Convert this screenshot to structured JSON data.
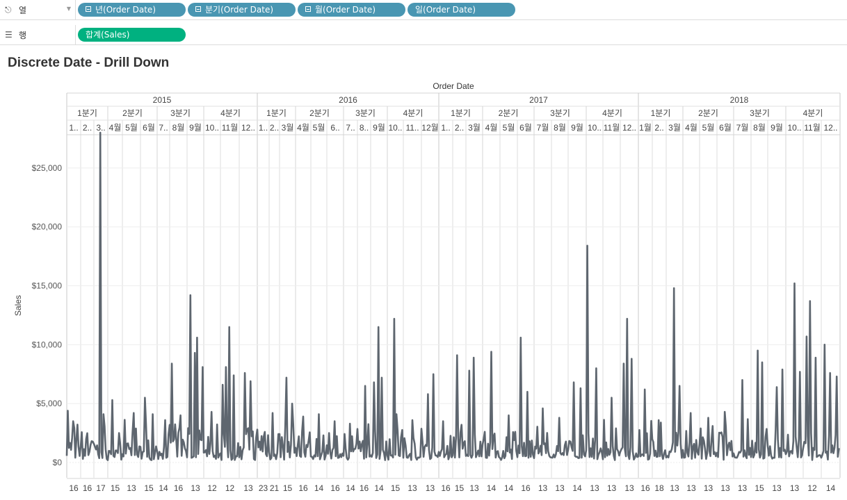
{
  "columns_shelf": {
    "label": "열",
    "icon": "columns-icon",
    "pills": [
      "년(Order Date)",
      "분기(Order Date)",
      "월(Order Date)",
      "일(Order Date)"
    ]
  },
  "rows_shelf": {
    "label": "행",
    "icon": "rows-icon",
    "pills": [
      "합계(Sales)"
    ]
  },
  "colors": {
    "dimension_pill": "#4996b2",
    "measure_pill": "#00b180",
    "line": "#5e666f"
  },
  "chart_data": {
    "type": "line",
    "title": "Discrete Date - Drill Down",
    "header_title": "Order Date",
    "ylabel": "Sales",
    "ylim": [
      0,
      29000
    ],
    "y_ticks": [
      {
        "value": 0,
        "label": "$0"
      },
      {
        "value": 5000,
        "label": "$5,000"
      },
      {
        "value": 10000,
        "label": "$10,000"
      },
      {
        "value": 15000,
        "label": "$15,000"
      },
      {
        "value": 20000,
        "label": "$20,000"
      },
      {
        "value": 25000,
        "label": "$25,000"
      }
    ],
    "years": [
      "2015",
      "2016",
      "2017",
      "2018"
    ],
    "quarter_labels": [
      "1분기",
      "2분기",
      "3분기",
      "4분기",
      "1분기",
      "2분기",
      "3분기",
      "4분기",
      "1분기",
      "2분기",
      "3분기",
      "4분기",
      "1분기",
      "2분기",
      "3분기",
      "4분기"
    ],
    "month_labels": [
      "1..",
      "2..",
      "3..",
      "4월",
      "5월",
      "6월",
      "7..",
      "8월",
      "9월",
      "10..",
      "11월",
      "12..",
      "1..",
      "2..",
      "3월",
      "4월",
      "5월",
      "6..",
      "7..",
      "8..",
      "9월",
      "10..",
      "11..",
      "12월",
      "1..",
      "2..",
      "3월",
      "4월",
      "5월",
      "6월",
      "7월",
      "8월",
      "9월",
      "10..",
      "11월",
      "12..",
      "1월",
      "2..",
      "3월",
      "4월",
      "5월",
      "6월",
      "7월",
      "8월",
      "9월",
      "10..",
      "11월",
      "12.."
    ],
    "month_bottom_labels": [
      "16",
      "16",
      "17",
      "15",
      "13",
      "15",
      "14",
      "16",
      "13",
      "12",
      "12",
      "13",
      "23",
      "21",
      "15",
      "16",
      "14",
      "16",
      "14",
      "16",
      "14",
      "15",
      "13",
      "13",
      "16",
      "15",
      "13",
      "14",
      "14",
      "16",
      "13",
      "13",
      "14",
      "13",
      "13",
      "13",
      "16",
      "18",
      "13",
      "13",
      "13",
      "13",
      "13",
      "15",
      "13",
      "13",
      "12",
      "14"
    ],
    "peaks": [
      {
        "month": 0,
        "pos": 0.1,
        "value": 4400
      },
      {
        "month": 0,
        "pos": 0.5,
        "value": 3500
      },
      {
        "month": 1,
        "pos": 0.4,
        "value": 2000
      },
      {
        "month": 2,
        "pos": 0.45,
        "value": 28000
      },
      {
        "month": 2,
        "pos": 0.7,
        "value": 4100
      },
      {
        "month": 3,
        "pos": 0.3,
        "value": 5300
      },
      {
        "month": 3,
        "pos": 0.8,
        "value": 2500
      },
      {
        "month": 4,
        "pos": 0.6,
        "value": 4200
      },
      {
        "month": 5,
        "pos": 0.3,
        "value": 5500
      },
      {
        "month": 5,
        "pos": 0.7,
        "value": 4100
      },
      {
        "month": 6,
        "pos": 0.6,
        "value": 3600
      },
      {
        "month": 7,
        "pos": 0.1,
        "value": 8400
      },
      {
        "month": 7,
        "pos": 0.6,
        "value": 4000
      },
      {
        "month": 8,
        "pos": 0.2,
        "value": 14200
      },
      {
        "month": 8,
        "pos": 0.6,
        "value": 10600
      },
      {
        "month": 8,
        "pos": 0.5,
        "value": 9300
      },
      {
        "month": 8,
        "pos": 0.9,
        "value": 8100
      },
      {
        "month": 9,
        "pos": 0.5,
        "value": 4300
      },
      {
        "month": 10,
        "pos": 0.1,
        "value": 6600
      },
      {
        "month": 10,
        "pos": 0.45,
        "value": 11500
      },
      {
        "month": 10,
        "pos": 0.3,
        "value": 8100
      },
      {
        "month": 10,
        "pos": 0.7,
        "value": 7400
      },
      {
        "month": 11,
        "pos": 0.3,
        "value": 7600
      },
      {
        "month": 11,
        "pos": 0.6,
        "value": 6900
      },
      {
        "month": 12,
        "pos": 0.6,
        "value": 2600
      },
      {
        "month": 13,
        "pos": 0.3,
        "value": 4200
      },
      {
        "month": 14,
        "pos": 0.4,
        "value": 7200
      },
      {
        "month": 14,
        "pos": 0.8,
        "value": 5000
      },
      {
        "month": 15,
        "pos": 0.5,
        "value": 3900
      },
      {
        "month": 16,
        "pos": 0.5,
        "value": 4100
      },
      {
        "month": 17,
        "pos": 0.5,
        "value": 3500
      },
      {
        "month": 18,
        "pos": 0.5,
        "value": 3300
      },
      {
        "month": 19,
        "pos": 0.6,
        "value": 6500
      },
      {
        "month": 20,
        "pos": 0.2,
        "value": 6800
      },
      {
        "month": 20,
        "pos": 0.5,
        "value": 11500
      },
      {
        "month": 20,
        "pos": 0.7,
        "value": 7200
      },
      {
        "month": 21,
        "pos": 0.4,
        "value": 12200
      },
      {
        "month": 21,
        "pos": 0.6,
        "value": 4100
      },
      {
        "month": 22,
        "pos": 0.5,
        "value": 3600
      },
      {
        "month": 23,
        "pos": 0.4,
        "value": 5800
      },
      {
        "month": 23,
        "pos": 0.7,
        "value": 7500
      },
      {
        "month": 24,
        "pos": 0.3,
        "value": 3500
      },
      {
        "month": 25,
        "pos": 0.3,
        "value": 9100
      },
      {
        "month": 25,
        "pos": 0.7,
        "value": 3200
      },
      {
        "month": 26,
        "pos": 0.2,
        "value": 7800
      },
      {
        "month": 26,
        "pos": 0.5,
        "value": 8900
      },
      {
        "month": 27,
        "pos": 0.5,
        "value": 9400
      },
      {
        "month": 28,
        "pos": 0.5,
        "value": 4000
      },
      {
        "month": 29,
        "pos": 0.2,
        "value": 10600
      },
      {
        "month": 29,
        "pos": 0.6,
        "value": 6000
      },
      {
        "month": 30,
        "pos": 0.5,
        "value": 4600
      },
      {
        "month": 31,
        "pos": 0.5,
        "value": 3800
      },
      {
        "month": 32,
        "pos": 0.3,
        "value": 6800
      },
      {
        "month": 32,
        "pos": 0.7,
        "value": 6300
      },
      {
        "month": 33,
        "pos": 0.1,
        "value": 18400
      },
      {
        "month": 33,
        "pos": 0.6,
        "value": 8000
      },
      {
        "month": 34,
        "pos": 0.5,
        "value": 5500
      },
      {
        "month": 35,
        "pos": 0.2,
        "value": 8400
      },
      {
        "month": 35,
        "pos": 0.4,
        "value": 12200
      },
      {
        "month": 35,
        "pos": 0.6,
        "value": 8800
      },
      {
        "month": 36,
        "pos": 0.5,
        "value": 6200
      },
      {
        "month": 37,
        "pos": 0.5,
        "value": 3600
      },
      {
        "month": 38,
        "pos": 0.5,
        "value": 14800
      },
      {
        "month": 38,
        "pos": 0.8,
        "value": 6500
      },
      {
        "month": 39,
        "pos": 0.5,
        "value": 4200
      },
      {
        "month": 40,
        "pos": 0.5,
        "value": 3800
      },
      {
        "month": 41,
        "pos": 0.5,
        "value": 4300
      },
      {
        "month": 42,
        "pos": 0.5,
        "value": 7000
      },
      {
        "month": 43,
        "pos": 0.4,
        "value": 9500
      },
      {
        "month": 43,
        "pos": 0.7,
        "value": 8500
      },
      {
        "month": 44,
        "pos": 0.5,
        "value": 6400
      },
      {
        "month": 44,
        "pos": 0.8,
        "value": 7900
      },
      {
        "month": 45,
        "pos": 0.5,
        "value": 15200
      },
      {
        "month": 45,
        "pos": 0.8,
        "value": 7700
      },
      {
        "month": 46,
        "pos": 0.2,
        "value": 10700
      },
      {
        "month": 46,
        "pos": 0.4,
        "value": 13700
      },
      {
        "month": 46,
        "pos": 0.7,
        "value": 8900
      },
      {
        "month": 47,
        "pos": 0.2,
        "value": 10000
      },
      {
        "month": 47,
        "pos": 0.5,
        "value": 7600
      },
      {
        "month": 47,
        "pos": 0.8,
        "value": 7300
      }
    ]
  }
}
